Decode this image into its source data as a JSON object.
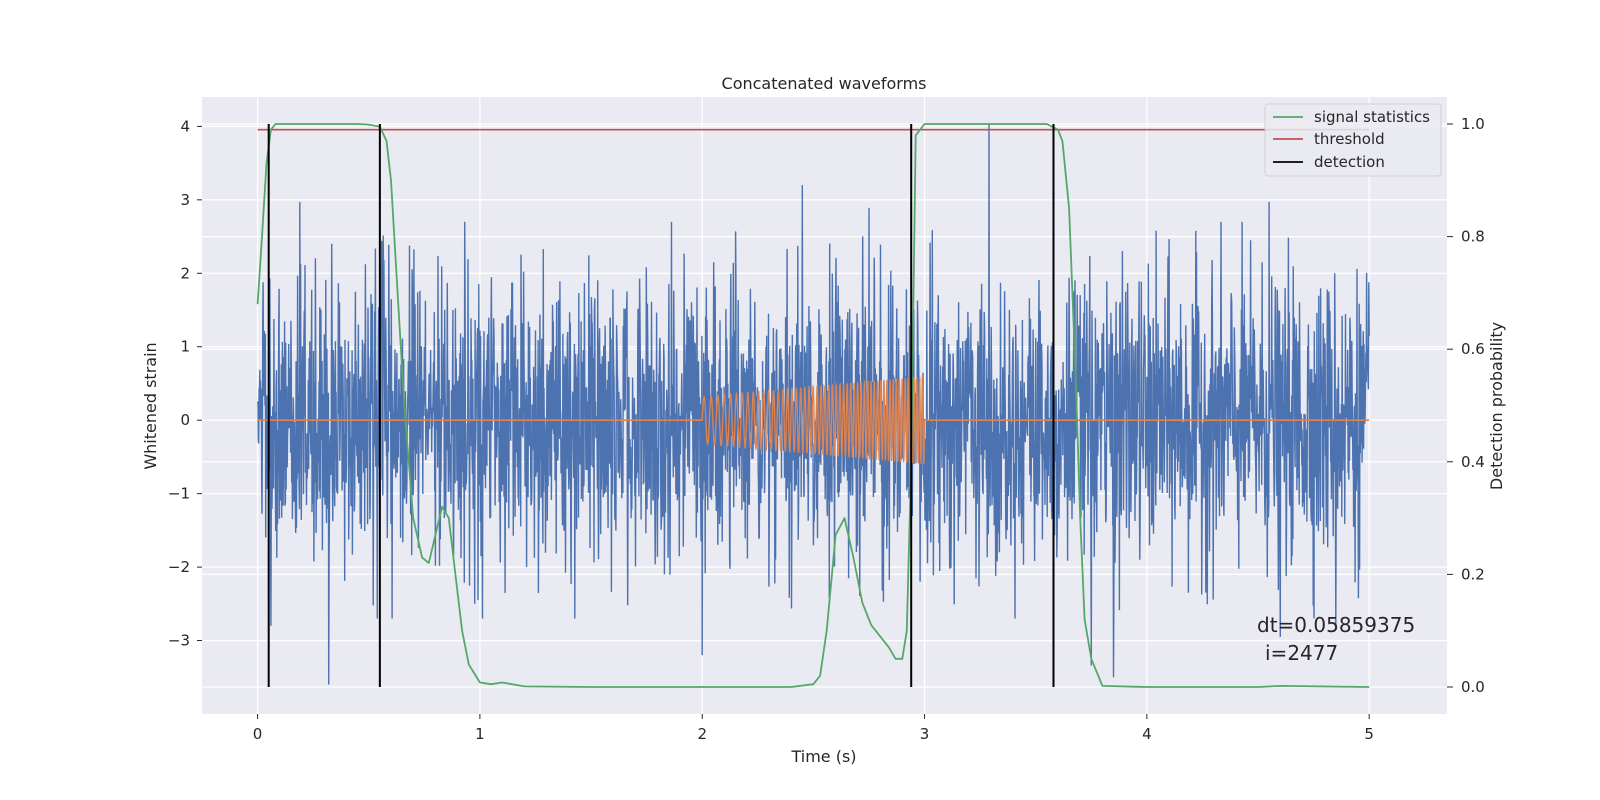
{
  "chart_data": {
    "type": "line",
    "title": "Concatenated waveforms",
    "xlabel": "Time (s)",
    "ylabel": "Whitened strain",
    "y2label": "Detection probability",
    "xlim": [
      -0.25,
      5.35
    ],
    "ylim": [
      -4.0,
      4.4
    ],
    "y2lim": [
      -0.048,
      1.048
    ],
    "xticks": [
      0,
      1,
      2,
      3,
      4,
      5
    ],
    "yticks": [
      -3,
      -2,
      -1,
      0,
      1,
      2,
      3,
      4
    ],
    "y2ticks": [
      0.0,
      0.2,
      0.4,
      0.6,
      0.8,
      1.0
    ],
    "y2tick_labels": [
      "0.0",
      "0.2",
      "0.4",
      "0.6",
      "0.8",
      "1.0"
    ],
    "grid": true,
    "legend_position": "top-right",
    "legend": [
      {
        "label": "signal statistics",
        "color": "#55a868"
      },
      {
        "label": "threshold",
        "color": "#c44e52"
      },
      {
        "label": "detection",
        "color": "#000000"
      }
    ],
    "colors": {
      "strain": "#4c72b0",
      "injection": "#dd8452",
      "signal_statistics": "#55a868",
      "threshold": "#c44e52",
      "detection": "#000000",
      "axes_bg": "#eaeaf2",
      "grid": "#ffffff"
    },
    "strain_series": {
      "x_range": [
        0,
        5
      ],
      "peaks": [
        {
          "x": 0.06,
          "y": -2.8
        },
        {
          "x": 0.19,
          "y": 2.97
        },
        {
          "x": 0.32,
          "y": -3.6
        },
        {
          "x": 1.83,
          "y": -2.1
        },
        {
          "x": 2.0,
          "y": -3.2
        },
        {
          "x": 2.15,
          "y": 2.57
        },
        {
          "x": 2.45,
          "y": 3.2
        },
        {
          "x": 2.75,
          "y": 2.89
        },
        {
          "x": 3.29,
          "y": 4.04
        },
        {
          "x": 3.75,
          "y": -3.34
        },
        {
          "x": 3.85,
          "y": -3.5
        },
        {
          "x": 4.55,
          "y": 2.97
        },
        {
          "x": 4.6,
          "y": -2.95
        },
        {
          "x": 4.85,
          "y": -2.8
        }
      ]
    },
    "injection_series": {
      "x_start": 2.0,
      "x_end": 3.0,
      "amplitude_start": 0.32,
      "amplitude_end": 0.6,
      "cycles": 55
    },
    "signal_statistics": {
      "x": [
        0.0,
        0.02,
        0.04,
        0.06,
        0.08,
        0.12,
        0.3,
        0.45,
        0.5,
        0.55,
        0.58,
        0.6,
        0.63,
        0.66,
        0.7,
        0.74,
        0.77,
        0.8,
        0.83,
        0.86,
        0.89,
        0.92,
        0.95,
        1.0,
        1.05,
        1.1,
        1.2,
        1.5,
        2.0,
        2.4,
        2.5,
        2.53,
        2.56,
        2.6,
        2.64,
        2.68,
        2.72,
        2.76,
        2.8,
        2.84,
        2.87,
        2.9,
        2.92,
        2.94,
        2.96,
        3.0,
        3.3,
        3.55,
        3.6,
        3.62,
        3.65,
        3.68,
        3.7,
        3.72,
        3.75,
        3.8,
        4.0,
        4.5,
        4.6,
        5.0
      ],
      "y": [
        0.68,
        0.8,
        0.93,
        0.99,
        1.0,
        1.0,
        1.0,
        1.0,
        0.999,
        0.995,
        0.97,
        0.9,
        0.7,
        0.5,
        0.3,
        0.23,
        0.22,
        0.27,
        0.32,
        0.3,
        0.2,
        0.1,
        0.04,
        0.008,
        0.005,
        0.008,
        0.001,
        0.0,
        0.0,
        0.0,
        0.005,
        0.02,
        0.1,
        0.27,
        0.3,
        0.23,
        0.15,
        0.11,
        0.09,
        0.07,
        0.05,
        0.05,
        0.1,
        0.4,
        0.98,
        1.0,
        1.0,
        1.0,
        0.99,
        0.97,
        0.85,
        0.55,
        0.3,
        0.12,
        0.05,
        0.002,
        0.0,
        0.0,
        0.002,
        0.0
      ]
    },
    "threshold_value": 0.99,
    "detections": [
      0.05,
      0.55,
      2.94,
      3.58
    ],
    "annotation": {
      "line1": "dt=0.05859375",
      "line2": "i=2477"
    }
  }
}
